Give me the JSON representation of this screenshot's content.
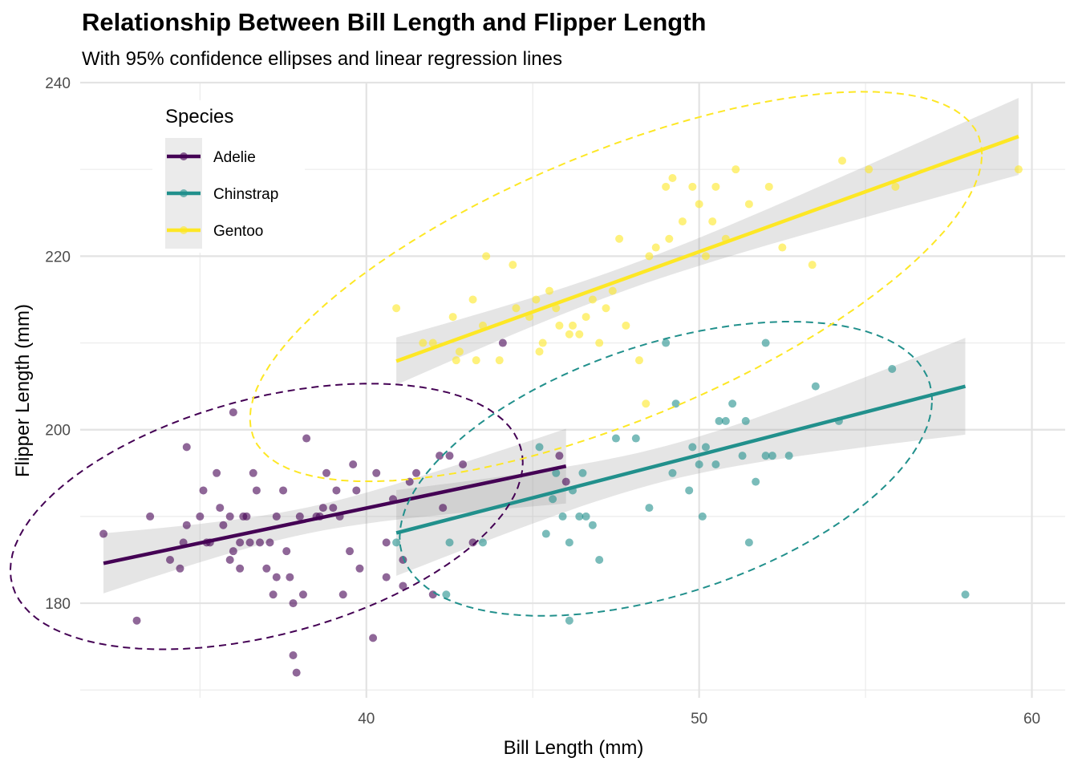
{
  "chart_data": {
    "type": "scatter",
    "title": "Relationship Between Bill Length and Flipper Length",
    "subtitle": "With 95% confidence ellipses and linear regression lines",
    "xlabel": "Bill Length (mm)",
    "ylabel": "Flipper Length (mm)",
    "xlim": [
      31.4,
      61.0
    ],
    "ylim": [
      169.1,
      240.0
    ],
    "xticks": [
      40,
      50,
      60
    ],
    "yticks": [
      180,
      200,
      220,
      240
    ],
    "grid": true,
    "legend": {
      "title": "Species",
      "position": "top-left"
    },
    "series": [
      {
        "name": "Adelie",
        "color": "#440154",
        "regression": {
          "x": [
            32.1,
            46.0
          ],
          "y": [
            184.6,
            195.8
          ]
        },
        "ellipse": {
          "center": [
            37.0,
            190.0
          ],
          "half_width_x": 7.7,
          "half_height_y": 14.0
        },
        "points": [
          [
            32.1,
            188
          ],
          [
            33.1,
            178
          ],
          [
            33.5,
            190
          ],
          [
            34.1,
            185
          ],
          [
            34.4,
            184
          ],
          [
            34.5,
            187
          ],
          [
            34.6,
            189
          ],
          [
            34.6,
            198
          ],
          [
            35.0,
            190
          ],
          [
            35.1,
            193
          ],
          [
            35.2,
            187
          ],
          [
            35.3,
            187
          ],
          [
            35.5,
            195
          ],
          [
            35.6,
            191
          ],
          [
            35.7,
            189
          ],
          [
            35.9,
            190
          ],
          [
            35.9,
            185
          ],
          [
            36.0,
            186
          ],
          [
            36.0,
            202
          ],
          [
            36.2,
            187
          ],
          [
            36.2,
            184
          ],
          [
            36.3,
            190
          ],
          [
            36.4,
            190
          ],
          [
            36.5,
            187
          ],
          [
            36.6,
            195
          ],
          [
            36.7,
            193
          ],
          [
            36.8,
            187
          ],
          [
            37.0,
            184
          ],
          [
            37.1,
            187
          ],
          [
            37.2,
            181
          ],
          [
            37.3,
            183
          ],
          [
            37.3,
            190
          ],
          [
            37.5,
            193
          ],
          [
            37.6,
            186
          ],
          [
            37.7,
            183
          ],
          [
            37.8,
            174
          ],
          [
            37.8,
            180
          ],
          [
            37.9,
            172
          ],
          [
            38.0,
            190
          ],
          [
            38.1,
            181
          ],
          [
            38.2,
            199
          ],
          [
            38.5,
            190
          ],
          [
            38.6,
            190
          ],
          [
            38.7,
            191
          ],
          [
            38.8,
            195
          ],
          [
            39.0,
            191
          ],
          [
            39.1,
            193
          ],
          [
            39.2,
            190
          ],
          [
            39.3,
            181
          ],
          [
            39.5,
            186
          ],
          [
            39.6,
            196
          ],
          [
            39.7,
            193
          ],
          [
            39.8,
            184
          ],
          [
            40.2,
            176
          ],
          [
            40.3,
            195
          ],
          [
            40.6,
            187
          ],
          [
            40.6,
            183
          ],
          [
            40.8,
            192
          ],
          [
            41.1,
            182
          ],
          [
            41.1,
            185
          ],
          [
            41.3,
            194
          ],
          [
            41.5,
            195
          ],
          [
            42.0,
            181
          ],
          [
            42.2,
            197
          ],
          [
            42.3,
            191
          ],
          [
            42.5,
            197
          ],
          [
            42.9,
            196
          ],
          [
            43.2,
            187
          ],
          [
            44.1,
            210
          ],
          [
            45.8,
            197
          ],
          [
            46.0,
            194
          ]
        ]
      },
      {
        "name": "Chinstrap",
        "color": "#21908C",
        "regression": {
          "x": [
            40.9,
            58.0
          ],
          "y": [
            188.1,
            205.0
          ]
        },
        "ellipse": {
          "center": [
            49.0,
            195.5
          ],
          "half_width_x": 8.0,
          "half_height_y": 15.0
        },
        "points": [
          [
            40.9,
            187
          ],
          [
            42.4,
            181
          ],
          [
            42.5,
            187
          ],
          [
            43.5,
            187
          ],
          [
            45.2,
            198
          ],
          [
            45.4,
            188
          ],
          [
            45.6,
            192
          ],
          [
            45.7,
            195
          ],
          [
            45.9,
            190
          ],
          [
            46.1,
            178
          ],
          [
            46.1,
            187
          ],
          [
            46.2,
            193
          ],
          [
            46.4,
            190
          ],
          [
            46.5,
            195
          ],
          [
            46.6,
            190
          ],
          [
            46.8,
            189
          ],
          [
            47.0,
            185
          ],
          [
            47.5,
            199
          ],
          [
            48.1,
            199
          ],
          [
            48.5,
            191
          ],
          [
            49.0,
            210
          ],
          [
            49.2,
            195
          ],
          [
            49.3,
            203
          ],
          [
            49.7,
            193
          ],
          [
            49.8,
            198
          ],
          [
            50.0,
            196
          ],
          [
            50.1,
            190
          ],
          [
            50.2,
            198
          ],
          [
            50.5,
            196
          ],
          [
            50.6,
            201
          ],
          [
            50.8,
            201
          ],
          [
            51.0,
            203
          ],
          [
            51.3,
            197
          ],
          [
            51.4,
            201
          ],
          [
            51.5,
            187
          ],
          [
            51.7,
            194
          ],
          [
            52.0,
            197
          ],
          [
            52.0,
            210
          ],
          [
            52.2,
            197
          ],
          [
            52.7,
            197
          ],
          [
            53.5,
            205
          ],
          [
            54.2,
            201
          ],
          [
            55.8,
            207
          ],
          [
            58.0,
            181
          ]
        ]
      },
      {
        "name": "Gentoo",
        "color": "#FDE725",
        "regression": {
          "x": [
            40.9,
            59.6
          ],
          "y": [
            207.9,
            233.8
          ]
        },
        "ellipse": {
          "center": [
            47.5,
            216.5
          ],
          "half_width_x": 11.0,
          "half_height_y": 16.5
        },
        "points": [
          [
            40.9,
            214
          ],
          [
            41.7,
            210
          ],
          [
            42.0,
            210
          ],
          [
            42.6,
            213
          ],
          [
            42.7,
            208
          ],
          [
            42.8,
            209
          ],
          [
            43.2,
            215
          ],
          [
            43.3,
            208
          ],
          [
            43.5,
            212
          ],
          [
            43.6,
            220
          ],
          [
            44.0,
            208
          ],
          [
            44.4,
            219
          ],
          [
            44.5,
            214
          ],
          [
            44.9,
            213
          ],
          [
            45.1,
            215
          ],
          [
            45.2,
            209
          ],
          [
            45.3,
            210
          ],
          [
            45.5,
            216
          ],
          [
            45.7,
            214
          ],
          [
            45.8,
            212
          ],
          [
            46.1,
            211
          ],
          [
            46.2,
            212
          ],
          [
            46.4,
            211
          ],
          [
            46.6,
            213
          ],
          [
            46.8,
            215
          ],
          [
            47.0,
            210
          ],
          [
            47.2,
            214
          ],
          [
            47.4,
            216
          ],
          [
            47.6,
            222
          ],
          [
            47.8,
            212
          ],
          [
            48.2,
            208
          ],
          [
            48.4,
            203
          ],
          [
            48.5,
            220
          ],
          [
            48.7,
            221
          ],
          [
            49.0,
            228
          ],
          [
            49.1,
            222
          ],
          [
            49.2,
            229
          ],
          [
            49.5,
            224
          ],
          [
            49.8,
            228
          ],
          [
            50.0,
            226
          ],
          [
            50.2,
            220
          ],
          [
            50.4,
            224
          ],
          [
            50.5,
            228
          ],
          [
            50.8,
            222
          ],
          [
            51.1,
            230
          ],
          [
            51.5,
            226
          ],
          [
            52.1,
            228
          ],
          [
            52.5,
            221
          ],
          [
            53.4,
            219
          ],
          [
            54.3,
            231
          ],
          [
            55.1,
            230
          ],
          [
            55.9,
            228
          ],
          [
            59.6,
            230
          ]
        ]
      }
    ]
  }
}
